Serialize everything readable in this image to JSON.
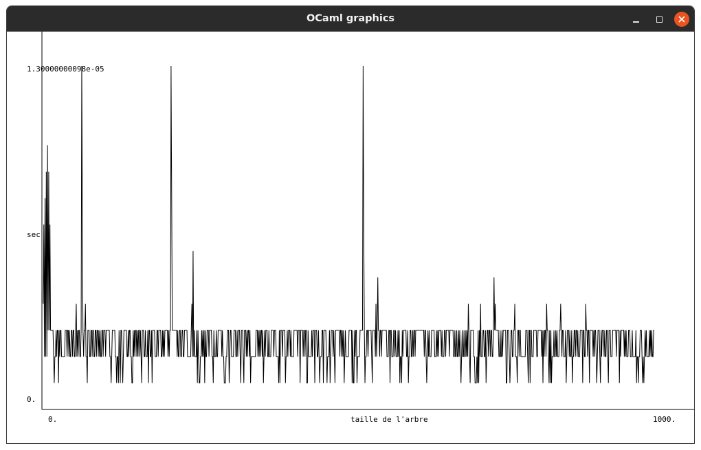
{
  "window": {
    "title": "OCaml graphics",
    "controls": {
      "minimize_icon": "minimize-icon",
      "maximize_icon": "maximize-icon",
      "close_icon": "close-icon"
    },
    "close_color": "#e95420",
    "titlebar_color": "#2b2b2b"
  },
  "chart_data": {
    "type": "line",
    "title": "",
    "xlabel": "taille de l'arbre",
    "ylabel": "sec",
    "xlim": [
      0,
      1000
    ],
    "ylim": [
      0,
      1.3e-05
    ],
    "x_tick_labels": [
      "0.",
      "1000."
    ],
    "y_tick_labels": [
      "0.",
      "1.30000000098e-05"
    ],
    "grid": false,
    "line_color": "#000000",
    "series": [
      {
        "name": "",
        "x_start": 1,
        "x_step": 1,
        "baseline_values": [
          3e-06,
          2e-06,
          3e-06,
          1e-06
        ],
        "spikes": [
          {
            "x": 1,
            "y": 4e-06
          },
          {
            "x": 2,
            "y": 7e-06
          },
          {
            "x": 4,
            "y": 8e-06
          },
          {
            "x": 6,
            "y": 9e-06
          },
          {
            "x": 8,
            "y": 1e-05
          },
          {
            "x": 10,
            "y": 9e-06
          },
          {
            "x": 12,
            "y": 7e-06
          },
          {
            "x": 64,
            "y": 1.3e-05
          },
          {
            "x": 65,
            "y": 7e-06
          },
          {
            "x": 210,
            "y": 1.3e-05
          },
          {
            "x": 211,
            "y": 8e-06
          },
          {
            "x": 246,
            "y": 6e-06
          },
          {
            "x": 524,
            "y": 1.3e-05
          },
          {
            "x": 525,
            "y": 7e-06
          },
          {
            "x": 548,
            "y": 5e-06
          },
          {
            "x": 738,
            "y": 5e-06
          },
          {
            "x": 55,
            "y": 4e-06
          },
          {
            "x": 70,
            "y": 4e-06
          },
          {
            "x": 244,
            "y": 4e-06
          },
          {
            "x": 545,
            "y": 4e-06
          },
          {
            "x": 696,
            "y": 4e-06
          },
          {
            "x": 716,
            "y": 4e-06
          },
          {
            "x": 740,
            "y": 4e-06
          },
          {
            "x": 772,
            "y": 4e-06
          },
          {
            "x": 824,
            "y": 4e-06
          },
          {
            "x": 847,
            "y": 4e-06
          },
          {
            "x": 888,
            "y": 4e-06
          }
        ]
      }
    ]
  }
}
